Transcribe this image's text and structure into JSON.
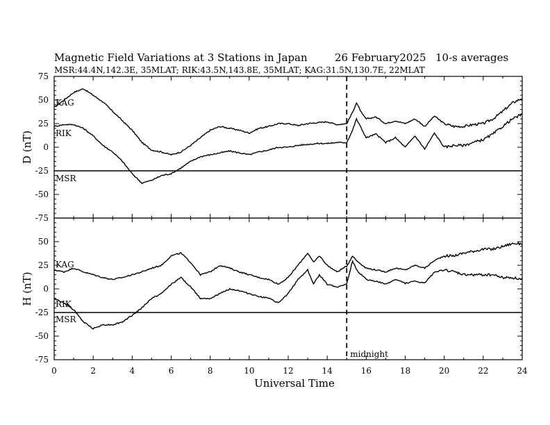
{
  "header": {
    "title": "Magnetic Field Variations at 3 Stations in Japan",
    "date": "26 February2025",
    "averaging": "10-s averages",
    "stations": "MSR:44.4N,142.3E, 35MLAT;  RIK:43.5N,143.8E, 35MLAT;  KAG:31.5N,130.7E, 22MLAT"
  },
  "chart_data": [
    {
      "type": "line",
      "panel": "D",
      "ylabel": "D (nT)",
      "xlabel": "Universal Time",
      "xlim": [
        0,
        24
      ],
      "ylim": [
        -75,
        75
      ],
      "yticks": [
        75,
        50,
        25,
        0,
        -25,
        -50,
        -75
      ],
      "yticklabels": [
        "75",
        "50",
        "25",
        "0",
        "-25",
        "-50",
        "-75"
      ],
      "annotation": "midnight",
      "midnight_hour": 15,
      "series": [
        {
          "name": "KAG",
          "x": [
            0,
            0.5,
            1,
            1.5,
            2,
            2.5,
            3,
            3.5,
            4,
            4.5,
            5,
            5.5,
            6,
            6.5,
            7,
            7.5,
            8,
            8.5,
            9,
            9.5,
            10,
            10.5,
            11,
            11.5,
            12,
            12.5,
            13,
            13.5,
            14,
            14.5,
            15,
            15.3,
            15.5,
            15.8,
            16,
            16.5,
            17,
            17.5,
            18,
            18.5,
            19,
            19.5,
            20,
            20.5,
            21,
            21.5,
            22,
            22.5,
            23,
            23.5,
            24
          ],
          "y": [
            42,
            50,
            58,
            62,
            55,
            48,
            38,
            28,
            18,
            5,
            -3,
            -5,
            -8,
            -5,
            2,
            10,
            18,
            22,
            20,
            18,
            15,
            20,
            22,
            25,
            25,
            23,
            25,
            26,
            27,
            24,
            25,
            37,
            47,
            35,
            30,
            32,
            25,
            28,
            25,
            30,
            22,
            33,
            25,
            22,
            22,
            24,
            25,
            30,
            38,
            47,
            52
          ]
        },
        {
          "name": "RIK",
          "x": [
            0,
            0.5,
            1,
            1.5,
            2,
            2.5,
            3,
            3.5,
            4,
            4.5,
            5,
            5.5,
            6,
            6.5,
            7,
            7.5,
            8,
            8.5,
            9,
            9.5,
            10,
            10.5,
            11,
            11.5,
            12,
            12.5,
            13,
            13.5,
            14,
            14.5,
            15,
            15.3,
            15.5,
            15.8,
            16,
            16.5,
            17,
            17.5,
            18,
            18.5,
            19,
            19.5,
            20,
            20.5,
            21,
            21.5,
            22,
            22.5,
            23,
            23.5,
            24
          ],
          "y": [
            22,
            24,
            24,
            20,
            12,
            2,
            -5,
            -15,
            -28,
            -38,
            -35,
            -30,
            -28,
            -22,
            -15,
            -10,
            -8,
            -6,
            -4,
            -6,
            -8,
            -5,
            -3,
            0,
            0,
            2,
            3,
            4,
            4,
            5,
            5,
            18,
            30,
            18,
            10,
            14,
            5,
            10,
            0,
            12,
            -2,
            15,
            0,
            2,
            2,
            5,
            8,
            14,
            22,
            30,
            35
          ]
        },
        {
          "name": "MSR",
          "x": [
            0,
            24
          ],
          "y": [
            -25,
            -25
          ]
        }
      ]
    },
    {
      "type": "line",
      "panel": "H",
      "ylabel": "H (nT)",
      "xlabel": "Universal Time",
      "xlim": [
        0,
        24
      ],
      "ylim": [
        -75,
        75
      ],
      "yticks": [
        50,
        25,
        0,
        -25,
        -50,
        -75
      ],
      "yticklabels": [
        "50",
        "25",
        "0",
        "-25",
        "-50",
        "-75"
      ],
      "xticks": [
        0,
        2,
        4,
        6,
        8,
        10,
        12,
        14,
        16,
        18,
        20,
        22,
        24
      ],
      "xticklabels": [
        "0",
        "2",
        "4",
        "6",
        "8",
        "10",
        "12",
        "14",
        "16",
        "18",
        "20",
        "22",
        "24"
      ],
      "annotation": "midnight",
      "midnight_hour": 15,
      "series": [
        {
          "name": "KAG",
          "x": [
            0,
            0.5,
            1,
            1.5,
            2,
            2.5,
            3,
            3.5,
            4,
            4.5,
            5,
            5.5,
            6,
            6.5,
            7,
            7.5,
            8,
            8.5,
            9,
            9.5,
            10,
            10.5,
            11,
            11.5,
            12,
            12.5,
            13,
            13.3,
            13.6,
            14,
            14.5,
            15,
            15.3,
            15.5,
            16,
            16.5,
            17,
            17.5,
            18,
            18.5,
            19,
            19.5,
            20,
            20.5,
            21,
            21.5,
            22,
            22.5,
            23,
            23.5,
            24
          ],
          "y": [
            20,
            18,
            22,
            18,
            15,
            12,
            10,
            12,
            15,
            18,
            22,
            25,
            35,
            38,
            28,
            15,
            18,
            25,
            22,
            18,
            15,
            12,
            10,
            5,
            12,
            25,
            38,
            28,
            35,
            25,
            18,
            24,
            35,
            30,
            22,
            20,
            18,
            22,
            20,
            25,
            22,
            30,
            35,
            35,
            38,
            40,
            42,
            42,
            45,
            48,
            48
          ]
        },
        {
          "name": "RIK",
          "x": [
            0,
            0.5,
            1,
            1.5,
            2,
            2.5,
            3,
            3.5,
            4,
            4.5,
            5,
            5.5,
            6,
            6.5,
            7,
            7.5,
            8,
            8.5,
            9,
            9.5,
            10,
            10.5,
            11,
            11.5,
            12,
            12.5,
            13,
            13.3,
            13.6,
            14,
            14.5,
            15,
            15.3,
            15.5,
            16,
            16.5,
            17,
            17.5,
            18,
            18.5,
            19,
            19.5,
            20,
            20.5,
            21,
            21.5,
            22,
            22.5,
            23,
            23.5,
            24
          ],
          "y": [
            -10,
            -15,
            -22,
            -35,
            -42,
            -38,
            -38,
            -35,
            -28,
            -20,
            -10,
            -5,
            5,
            12,
            2,
            -10,
            -10,
            -5,
            0,
            -2,
            -5,
            -8,
            -10,
            -15,
            -5,
            10,
            20,
            5,
            15,
            5,
            2,
            5,
            30,
            20,
            10,
            8,
            5,
            10,
            6,
            8,
            6,
            18,
            20,
            18,
            15,
            15,
            15,
            15,
            12,
            12,
            10
          ]
        },
        {
          "name": "MSR",
          "x": [
            0,
            24
          ],
          "y": [
            -25,
            -25
          ]
        }
      ]
    }
  ],
  "labels": {
    "d_kag": "KAG",
    "d_rik": "RIK",
    "d_msr": "MSR",
    "h_kag": "KAG",
    "h_rik": "RIK",
    "h_msr": "MSR"
  },
  "colors": {
    "line": "#000000",
    "background": "#ffffff"
  }
}
